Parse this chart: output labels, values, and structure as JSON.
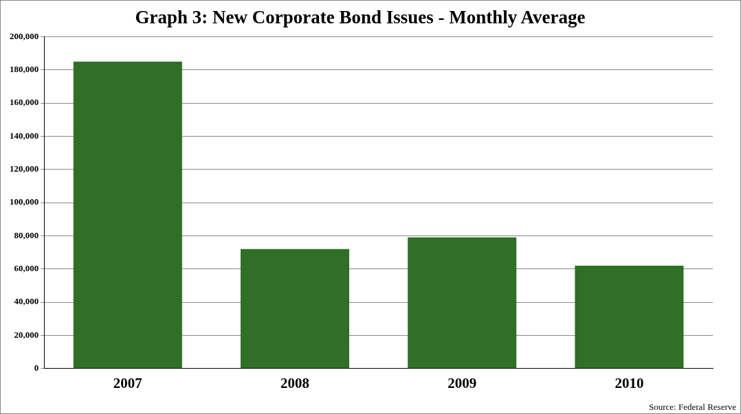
{
  "chart_data": {
    "type": "bar",
    "title": "Graph 3: New Corporate Bond Issues - Monthly Average",
    "categories": [
      "2007",
      "2008",
      "2009",
      "2010"
    ],
    "values": [
      185000,
      72000,
      79000,
      62000
    ],
    "color": "#2f6f26",
    "ylim": [
      0,
      200000
    ],
    "yticks": [
      0,
      {
        "value": 20000,
        "label": "20,000"
      },
      {
        "value": 40000,
        "label": "40,000"
      },
      {
        "value": 60000,
        "label": "60,000"
      },
      {
        "value": 80000,
        "label": "80,000"
      },
      {
        "value": 100000,
        "label": "100,000"
      },
      {
        "value": 120000,
        "label": "120,000"
      },
      {
        "value": 140000,
        "label": "140,000"
      },
      {
        "value": 160000,
        "label": "160,000"
      },
      {
        "value": 180000,
        "label": "180,000"
      },
      {
        "value": 200000,
        "label": "200,000"
      }
    ],
    "grid": "y",
    "annotations": [
      "Source: Federal Reserve"
    ]
  }
}
